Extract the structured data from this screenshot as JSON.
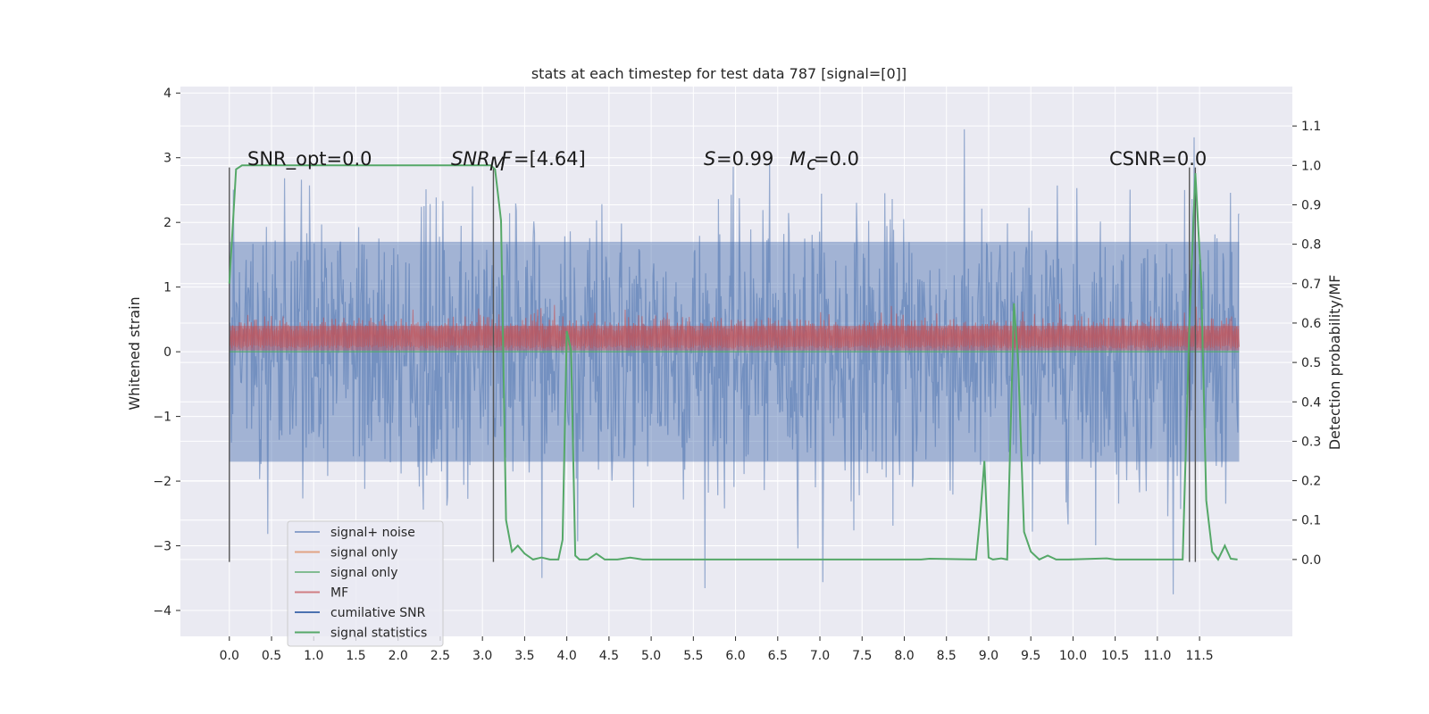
{
  "chart_data": {
    "type": "line",
    "title": "stats at each timestep for test data 787 [signal=[0]]",
    "xlabel": "",
    "ylabel_left": "Whitened strain",
    "ylabel_right": "Detection probability/MF",
    "xlim": [
      -0.58,
      12.6
    ],
    "ylim_left": [
      -4.4,
      4.1
    ],
    "ylim_right": [
      -0.195,
      1.2
    ],
    "x_ticks": [
      0.0,
      0.5,
      1.0,
      1.5,
      2.0,
      2.5,
      3.0,
      3.5,
      4.0,
      4.5,
      5.0,
      5.5,
      6.0,
      6.5,
      7.0,
      7.5,
      8.0,
      8.5,
      9.0,
      9.5,
      10.0,
      10.5,
      11.0,
      11.5
    ],
    "x_tick_labels": [
      "0.0",
      "0.5",
      "1.0",
      "1.5",
      "2.0",
      "2.5",
      "3.0",
      "3.5",
      "4.0",
      "4.5",
      "5.0",
      "5.5",
      "6.0",
      "6.5",
      "7.0",
      "7.5",
      "8.0",
      "8.5",
      "9.0",
      "9.5",
      "10.0",
      "10.5",
      "11.0",
      "11.5"
    ],
    "y_ticks_left": [
      -4,
      -3,
      -2,
      -1,
      0,
      1,
      2,
      3,
      4
    ],
    "y_tick_labels_left": [
      "−4",
      "−3",
      "−2",
      "−1",
      "0",
      "1",
      "2",
      "3",
      "4"
    ],
    "y_ticks_right": [
      0.0,
      0.1,
      0.2,
      0.3,
      0.4,
      0.5,
      0.6,
      0.7,
      0.8,
      0.9,
      1.0,
      1.1
    ],
    "y_tick_labels_right": [
      "0.0",
      "0.1",
      "0.2",
      "0.3",
      "0.4",
      "0.5",
      "0.6",
      "0.7",
      "0.8",
      "0.9",
      "1.0",
      "1.1"
    ],
    "grid": true,
    "legend_position": "lower-left",
    "legend": [
      {
        "label": "signal+ noise",
        "color": "#4c72b0",
        "alpha": 0.6
      },
      {
        "label": "signal only",
        "color": "#dd8452",
        "alpha": 0.7
      },
      {
        "label": "signal only",
        "color": "#55a868",
        "alpha": 0.7
      },
      {
        "label": "MF",
        "color": "#c44e52",
        "alpha": 0.7
      },
      {
        "label": "cumilative SNR",
        "color": "#4c72b0",
        "alpha": 1.0
      },
      {
        "label": "signal statistics",
        "color": "#55a868",
        "alpha": 1.0
      }
    ],
    "annotations": {
      "snr_opt": "SNR_opt=0.0",
      "snr_mf": "=[4.64]",
      "s": "=0.99",
      "mc": "=0.0",
      "csnr": "CSNR=0.0"
    },
    "noise_series": {
      "name": "signal+ noise",
      "x_range": [
        0.0,
        11.97
      ],
      "envelope_max": 3.7,
      "envelope_min": -3.75,
      "typical_amplitude": 1.7
    },
    "mf_series": {
      "name": "MF",
      "x_range": [
        0.0,
        11.97
      ],
      "baseline": 0.4,
      "range": [
        0.0,
        1.0
      ]
    },
    "vertical_markers": [
      0.0,
      3.13,
      11.38,
      11.45
    ],
    "vertical_marker_range": [
      -3.25,
      2.85
    ],
    "signal_statistics": {
      "name": "signal statistics",
      "axis": "right",
      "x": [
        0.0,
        0.05,
        0.08,
        0.15,
        0.3,
        2.9,
        3.0,
        3.1,
        3.15,
        3.22,
        3.28,
        3.35,
        3.42,
        3.5,
        3.6,
        3.7,
        3.8,
        3.9,
        3.95,
        4.0,
        4.05,
        4.1,
        4.15,
        4.25,
        4.35,
        4.45,
        4.6,
        4.75,
        4.9,
        5.2,
        8.2,
        8.3,
        8.85,
        8.9,
        8.95,
        9.0,
        9.05,
        9.15,
        9.22,
        9.3,
        9.35,
        9.42,
        9.5,
        9.6,
        9.7,
        9.8,
        9.95,
        10.4,
        10.5,
        11.3,
        11.38,
        11.45,
        11.52,
        11.58,
        11.65,
        11.72,
        11.8,
        11.87,
        11.95
      ],
      "y": [
        0.7,
        0.88,
        0.99,
        1.0,
        1.0,
        1.0,
        1.0,
        1.0,
        0.99,
        0.86,
        0.1,
        0.02,
        0.035,
        0.015,
        0.0,
        0.005,
        0.0,
        0.0,
        0.05,
        0.58,
        0.53,
        0.01,
        0.0,
        0.0,
        0.015,
        0.0,
        0.0,
        0.005,
        0.0,
        0.0,
        0.0,
        0.002,
        0.0,
        0.11,
        0.25,
        0.005,
        0.0,
        0.003,
        0.0,
        0.65,
        0.5,
        0.07,
        0.02,
        0.0,
        0.01,
        0.0,
        0.0,
        0.003,
        0.0,
        0.0,
        0.6,
        0.98,
        0.7,
        0.15,
        0.02,
        0.0,
        0.035,
        0.002,
        0.0
      ]
    }
  }
}
